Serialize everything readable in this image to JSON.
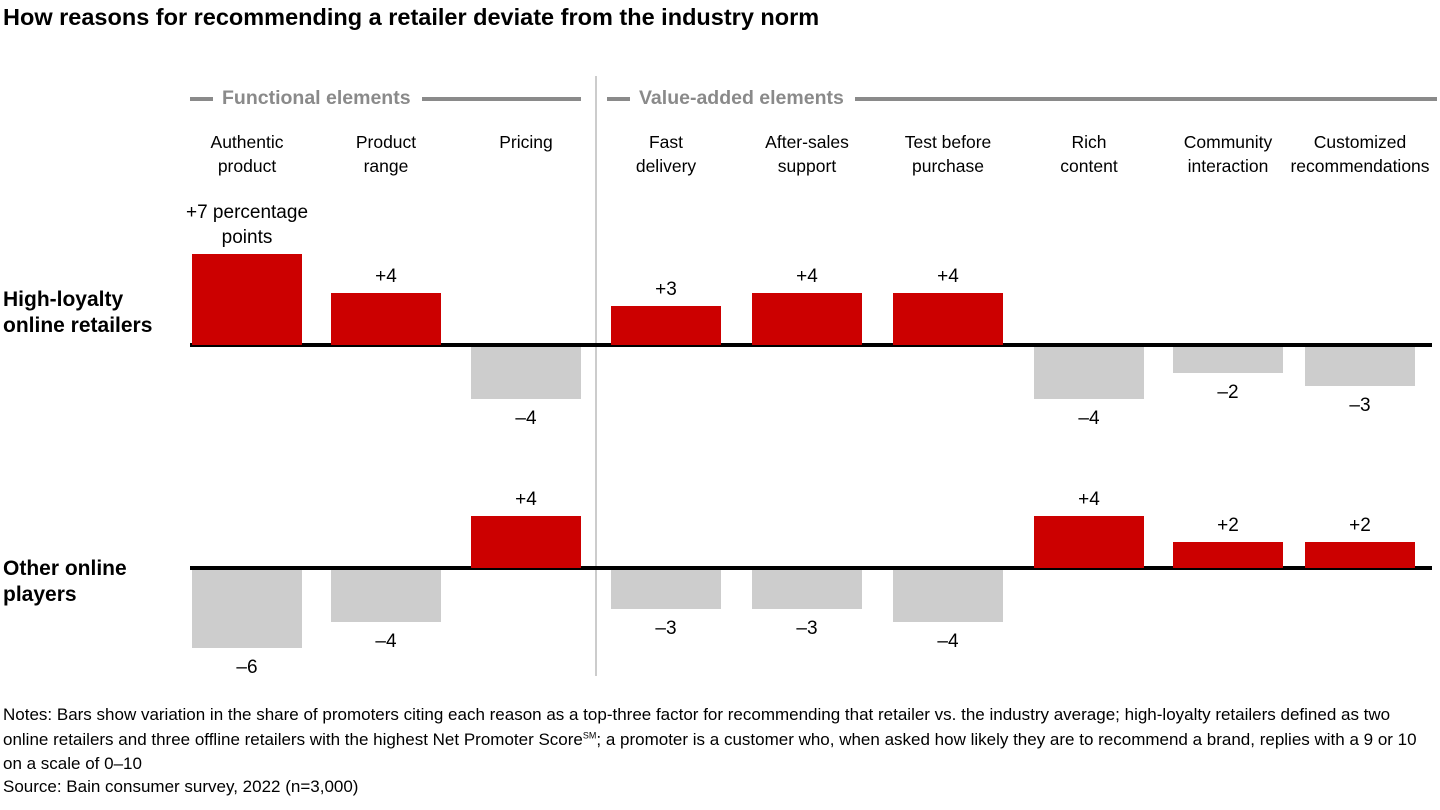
{
  "title": "How reasons for recommending a retailer deviate from the industry norm",
  "chart_data": {
    "type": "bar",
    "title": "How reasons for recommending a retailer deviate from the industry norm",
    "unit": "percentage points vs. industry average",
    "grid": false,
    "legend_position": "none",
    "groups": [
      {
        "label": "Functional elements",
        "column_indexes": [
          0,
          1,
          2
        ]
      },
      {
        "label": "Value-added elements",
        "column_indexes": [
          3,
          4,
          5,
          6,
          7,
          8
        ]
      }
    ],
    "categories": [
      "Authentic product",
      "Product range",
      "Pricing",
      "Fast delivery",
      "After-sales support",
      "Test before purchase",
      "Rich content",
      "Community interaction",
      "Customized recommendations"
    ],
    "category_lines": [
      [
        "Authentic",
        "product"
      ],
      [
        "Product",
        "range"
      ],
      [
        "Pricing"
      ],
      [
        "Fast",
        "delivery"
      ],
      [
        "After-sales",
        "support"
      ],
      [
        "Test before",
        "purchase"
      ],
      [
        "Rich",
        "content"
      ],
      [
        "Community",
        "interaction"
      ],
      [
        "Customized",
        "recommendations"
      ]
    ],
    "series": [
      {
        "name": "High-loyalty online retailers",
        "name_lines": [
          "High-loyalty",
          "online retailers"
        ],
        "values": [
          7,
          4,
          -4,
          3,
          4,
          4,
          -4,
          -2,
          -3
        ]
      },
      {
        "name": "Other online players",
        "name_lines": [
          "Other online",
          "players"
        ],
        "values": [
          -6,
          -4,
          4,
          -3,
          -3,
          -4,
          4,
          2,
          2
        ]
      }
    ],
    "first_bar_label": "+7 percentage points",
    "first_bar_label_lines": [
      "+7 percentage",
      "points"
    ],
    "colors": {
      "positive": "#cc0000",
      "negative": "#cdcdcd",
      "baseline": "#000000",
      "group_header": "#8a8a8a"
    }
  },
  "notes": {
    "text_before_sm": "Notes: Bars show variation in the share of promoters citing each reason as a top-three factor for recommending that retailer vs. the industry average; high-loyalty retailers defined as two online retailers and three offline retailers with the highest Net Promoter Score",
    "sm": "SM",
    "text_after_sm": "; a promoter is a customer who, when asked how likely they are to recommend a brand, replies with a 9 or 10 on a scale of 0–10"
  },
  "source": "Source: Bain consumer survey, 2022 (n=3,000)"
}
